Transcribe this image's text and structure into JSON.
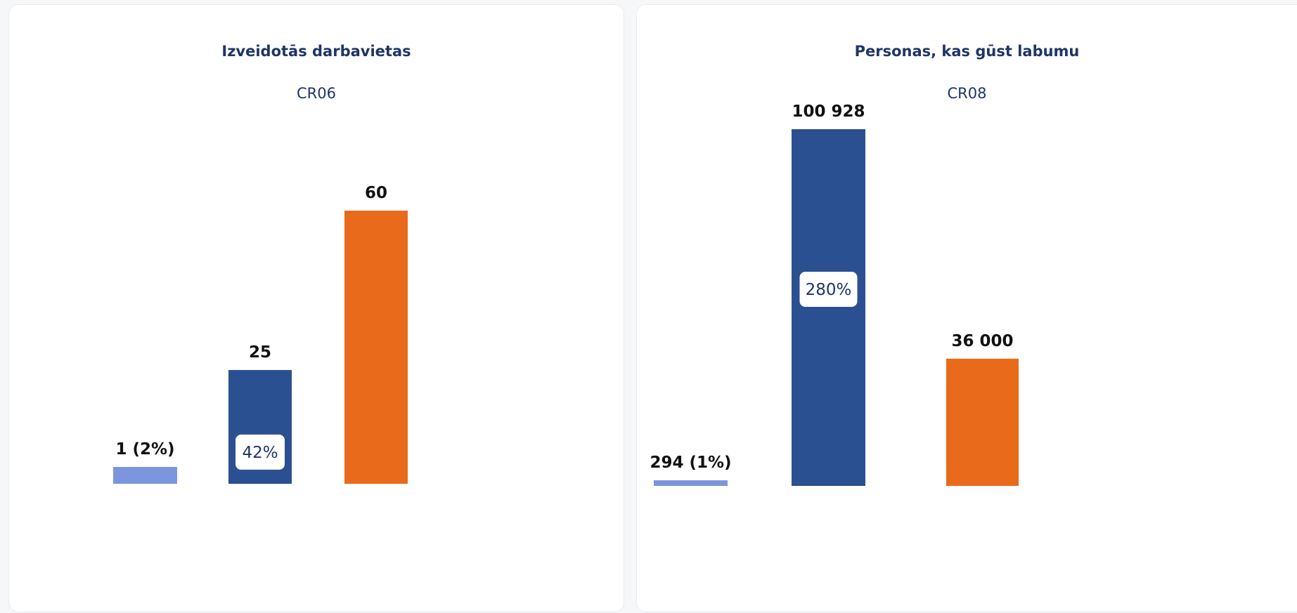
{
  "chart_data": [
    {
      "type": "bar",
      "title": "Izveidotās darbavietas",
      "subtitle": "CR06",
      "categories": [
        "",
        "",
        ""
      ],
      "values": [
        1,
        25,
        60
      ],
      "value_labels": [
        "1 (2%)",
        "25",
        "60"
      ],
      "inner_labels": [
        "",
        "42%",
        ""
      ],
      "colors": [
        "#7b96dc",
        "#2b5091",
        "#e96a1b"
      ],
      "ylim": [
        0,
        60
      ]
    },
    {
      "type": "bar",
      "title": "Personas, kas gūst labumu",
      "subtitle": "CR08",
      "categories": [
        "",
        "",
        ""
      ],
      "values": [
        294,
        100928,
        36000
      ],
      "value_labels": [
        "294 (1%)",
        "100 928",
        "36 000"
      ],
      "inner_labels": [
        "",
        "280%",
        ""
      ],
      "colors": [
        "#7b96dc",
        "#2b5091",
        "#e96a1b"
      ],
      "ylim": [
        0,
        100928
      ]
    }
  ]
}
